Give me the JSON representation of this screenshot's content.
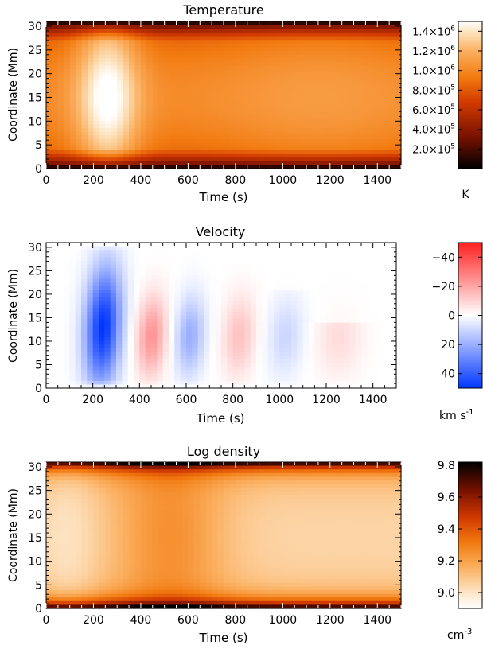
{
  "chart_data": [
    {
      "type": "heatmap",
      "title": "Temperature",
      "xlabel": "Time (s)",
      "ylabel": "Coordinate (Mm)",
      "xlim": [
        0,
        1500
      ],
      "ylim": [
        0,
        31
      ],
      "xticks": [
        "0",
        "200",
        "400",
        "600",
        "800",
        "1000",
        "1200",
        "1400"
      ],
      "yticks": [
        "0",
        "5",
        "10",
        "15",
        "20",
        "25",
        "30"
      ],
      "colorbar": {
        "unit": "K",
        "colormap": "red-temperature (black-red-orange-white)",
        "range": [
          0,
          1500000
        ],
        "ticks": [
          {
            "value": 200000,
            "mantissa": "2.0",
            "exp": "5"
          },
          {
            "value": 400000,
            "mantissa": "4.0",
            "exp": "5"
          },
          {
            "value": 600000,
            "mantissa": "6.0",
            "exp": "5"
          },
          {
            "value": 800000,
            "mantissa": "8.0",
            "exp": "5"
          },
          {
            "value": 1000000,
            "mantissa": "1.0",
            "exp": "6"
          },
          {
            "value": 1200000,
            "mantissa": "1.2",
            "exp": "6"
          },
          {
            "value": 1400000,
            "mantissa": "1.4",
            "exp": "6"
          }
        ]
      },
      "description_of_field": "Hot core (~1.4e6 K) near 150–350 s centered ~15 Mm; ~1.0e6 K mid-loop later; cool (<2e5 K) footpoints near 0 and 30 Mm"
    },
    {
      "type": "heatmap",
      "title": "Velocity",
      "xlabel": "Time (s)",
      "ylabel": "Coordinate (Mm)",
      "xlim": [
        0,
        1500
      ],
      "ylim": [
        0,
        31
      ],
      "xticks": [
        "0",
        "200",
        "400",
        "600",
        "800",
        "1000",
        "1200",
        "1400"
      ],
      "yticks": [
        "0",
        "5",
        "10",
        "15",
        "20",
        "25",
        "30"
      ],
      "colorbar": {
        "unit": "km s",
        "unit_exp": "-1",
        "colormap": "red-white-blue (diverging)",
        "range": [
          -50,
          50
        ],
        "reversed": true,
        "ticks": [
          "-40",
          "-20",
          "0",
          "20",
          "40"
        ]
      },
      "description_of_field": "Oscillating pattern: +50 (blue) ~250 s, -25 (red) ~450 s, +20 (blue) ~620 s, -12 (red) ~820 s, +8 (blue) ~1030 s, -6 (red) ~1250 s; amplitude decays with time"
    },
    {
      "type": "heatmap",
      "title": "Log density",
      "xlabel": "Time (s)",
      "ylabel": "Coordinate (Mm)",
      "xlim": [
        0,
        1500
      ],
      "ylim": [
        0,
        31
      ],
      "xticks": [
        "0",
        "200",
        "400",
        "600",
        "800",
        "1000",
        "1200",
        "1400"
      ],
      "yticks": [
        "0",
        "5",
        "10",
        "15",
        "20",
        "25",
        "30"
      ],
      "colorbar": {
        "unit": "cm",
        "unit_exp": "-3",
        "colormap": "reversed red-temperature (white-orange-red-black)",
        "range": [
          8.9,
          9.82
        ],
        "ticks": [
          "9.0",
          "9.2",
          "9.4",
          "9.6",
          "9.8"
        ]
      },
      "description_of_field": "Low density (~9.0) in loop interior early and late; denser (~9.3) near footpoints and during 300–700 s; ~9.8 at footpoints"
    }
  ]
}
